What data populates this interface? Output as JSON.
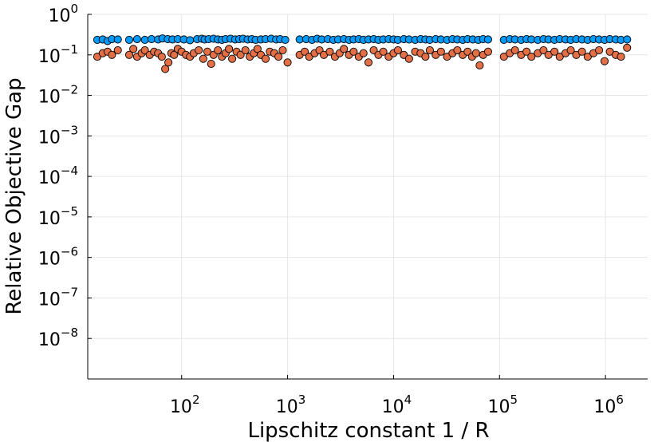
{
  "chart_data": {
    "type": "scatter",
    "title": "",
    "xlabel": "Lipschitz constant 1 / R",
    "ylabel": "Relative Objective Gap",
    "x_scale": "log",
    "y_scale": "log",
    "xlim": [
      13,
      2500000
    ],
    "ylim": [
      1e-09,
      1.0
    ],
    "x_ticks": [
      {
        "value": 100,
        "base": "10",
        "exp": "2"
      },
      {
        "value": 1000,
        "base": "10",
        "exp": "3"
      },
      {
        "value": 10000,
        "base": "10",
        "exp": "4"
      },
      {
        "value": 100000,
        "base": "10",
        "exp": "5"
      },
      {
        "value": 1000000,
        "base": "10",
        "exp": "6"
      }
    ],
    "y_ticks": [
      {
        "value": 1.0,
        "base": "10",
        "exp": "0"
      },
      {
        "value": 0.1,
        "base": "10",
        "exp": "−1"
      },
      {
        "value": 0.01,
        "base": "10",
        "exp": "−2"
      },
      {
        "value": 0.001,
        "base": "10",
        "exp": "−3"
      },
      {
        "value": 0.0001,
        "base": "10",
        "exp": "−4"
      },
      {
        "value": 1e-05,
        "base": "10",
        "exp": "−5"
      },
      {
        "value": 1e-06,
        "base": "10",
        "exp": "−6"
      },
      {
        "value": 1e-07,
        "base": "10",
        "exp": "−7"
      },
      {
        "value": 1e-08,
        "base": "10",
        "exp": "−8"
      }
    ],
    "grid": true,
    "legend": "none",
    "series": [
      {
        "color": "#009AFA",
        "points": [
          [
            16,
            0.235
          ],
          [
            18,
            0.24
          ],
          [
            20,
            0.22
          ],
          [
            22,
            0.245
          ],
          [
            25,
            0.24
          ],
          [
            32,
            0.235
          ],
          [
            38,
            0.245
          ],
          [
            45,
            0.235
          ],
          [
            52,
            0.245
          ],
          [
            60,
            0.24
          ],
          [
            66,
            0.255
          ],
          [
            74,
            0.245
          ],
          [
            82,
            0.24
          ],
          [
            92,
            0.245
          ],
          [
            105,
            0.24
          ],
          [
            120,
            0.23
          ],
          [
            140,
            0.245
          ],
          [
            155,
            0.25
          ],
          [
            165,
            0.24
          ],
          [
            180,
            0.245
          ],
          [
            200,
            0.25
          ],
          [
            220,
            0.24
          ],
          [
            240,
            0.235
          ],
          [
            260,
            0.245
          ],
          [
            290,
            0.25
          ],
          [
            320,
            0.24
          ],
          [
            350,
            0.245
          ],
          [
            380,
            0.25
          ],
          [
            420,
            0.24
          ],
          [
            460,
            0.245
          ],
          [
            500,
            0.235
          ],
          [
            560,
            0.24
          ],
          [
            620,
            0.245
          ],
          [
            700,
            0.25
          ],
          [
            780,
            0.24
          ],
          [
            850,
            0.245
          ],
          [
            950,
            0.235
          ],
          [
            1300,
            0.24
          ],
          [
            1500,
            0.245
          ],
          [
            1700,
            0.235
          ],
          [
            1900,
            0.25
          ],
          [
            2100,
            0.24
          ],
          [
            2400,
            0.245
          ],
          [
            2700,
            0.235
          ],
          [
            3000,
            0.24
          ],
          [
            3400,
            0.245
          ],
          [
            3800,
            0.235
          ],
          [
            4200,
            0.24
          ],
          [
            4700,
            0.245
          ],
          [
            5200,
            0.235
          ],
          [
            5800,
            0.24
          ],
          [
            6500,
            0.245
          ],
          [
            7200,
            0.235
          ],
          [
            8000,
            0.24
          ],
          [
            9000,
            0.245
          ],
          [
            10000,
            0.24
          ],
          [
            11000,
            0.235
          ],
          [
            12500,
            0.245
          ],
          [
            14000,
            0.24
          ],
          [
            16000,
            0.235
          ],
          [
            18000,
            0.245
          ],
          [
            20000,
            0.24
          ],
          [
            22000,
            0.235
          ],
          [
            25000,
            0.245
          ],
          [
            28000,
            0.24
          ],
          [
            32000,
            0.235
          ],
          [
            36000,
            0.245
          ],
          [
            40000,
            0.24
          ],
          [
            45000,
            0.235
          ],
          [
            50000,
            0.245
          ],
          [
            56000,
            0.24
          ],
          [
            63000,
            0.235
          ],
          [
            70000,
            0.245
          ],
          [
            78000,
            0.24
          ],
          [
            110000,
            0.235
          ],
          [
            125000,
            0.245
          ],
          [
            140000,
            0.24
          ],
          [
            160000,
            0.235
          ],
          [
            180000,
            0.245
          ],
          [
            200000,
            0.24
          ],
          [
            230000,
            0.235
          ],
          [
            260000,
            0.245
          ],
          [
            290000,
            0.24
          ],
          [
            330000,
            0.235
          ],
          [
            370000,
            0.245
          ],
          [
            420000,
            0.24
          ],
          [
            470000,
            0.235
          ],
          [
            530000,
            0.245
          ],
          [
            600000,
            0.24
          ],
          [
            680000,
            0.235
          ],
          [
            770000,
            0.245
          ],
          [
            870000,
            0.24
          ],
          [
            980000,
            0.235
          ],
          [
            1100000,
            0.245
          ],
          [
            1250000,
            0.24
          ],
          [
            1400000,
            0.235
          ],
          [
            1600000,
            0.24
          ]
        ]
      },
      {
        "color": "#E26F46",
        "points": [
          [
            16,
            0.09
          ],
          [
            18,
            0.11
          ],
          [
            20,
            0.12
          ],
          [
            22,
            0.1
          ],
          [
            25,
            0.13
          ],
          [
            32,
            0.1
          ],
          [
            35,
            0.14
          ],
          [
            38,
            0.09
          ],
          [
            42,
            0.11
          ],
          [
            45,
            0.13
          ],
          [
            50,
            0.1
          ],
          [
            55,
            0.12
          ],
          [
            60,
            0.11
          ],
          [
            65,
            0.09
          ],
          [
            70,
            0.045
          ],
          [
            75,
            0.065
          ],
          [
            80,
            0.11
          ],
          [
            85,
            0.1
          ],
          [
            92,
            0.14
          ],
          [
            100,
            0.12
          ],
          [
            110,
            0.1
          ],
          [
            120,
            0.09
          ],
          [
            130,
            0.11
          ],
          [
            145,
            0.13
          ],
          [
            160,
            0.08
          ],
          [
            175,
            0.12
          ],
          [
            190,
            0.06
          ],
          [
            200,
            0.1
          ],
          [
            220,
            0.13
          ],
          [
            240,
            0.09
          ],
          [
            260,
            0.11
          ],
          [
            280,
            0.14
          ],
          [
            300,
            0.08
          ],
          [
            330,
            0.12
          ],
          [
            360,
            0.1
          ],
          [
            400,
            0.13
          ],
          [
            440,
            0.09
          ],
          [
            480,
            0.11
          ],
          [
            520,
            0.14
          ],
          [
            560,
            0.1
          ],
          [
            620,
            0.08
          ],
          [
            680,
            0.12
          ],
          [
            750,
            0.11
          ],
          [
            820,
            0.09
          ],
          [
            900,
            0.13
          ],
          [
            1000,
            0.065
          ],
          [
            1300,
            0.1
          ],
          [
            1450,
            0.12
          ],
          [
            1600,
            0.09
          ],
          [
            1800,
            0.11
          ],
          [
            2000,
            0.13
          ],
          [
            2200,
            0.1
          ],
          [
            2500,
            0.12
          ],
          [
            2800,
            0.09
          ],
          [
            3100,
            0.11
          ],
          [
            3400,
            0.14
          ],
          [
            3800,
            0.1
          ],
          [
            4200,
            0.12
          ],
          [
            4700,
            0.09
          ],
          [
            5200,
            0.11
          ],
          [
            5800,
            0.065
          ],
          [
            6500,
            0.13
          ],
          [
            7200,
            0.1
          ],
          [
            8000,
            0.12
          ],
          [
            9000,
            0.09
          ],
          [
            10000,
            0.11
          ],
          [
            11000,
            0.13
          ],
          [
            12500,
            0.1
          ],
          [
            14000,
            0.08
          ],
          [
            16000,
            0.12
          ],
          [
            18000,
            0.11
          ],
          [
            20000,
            0.09
          ],
          [
            22000,
            0.13
          ],
          [
            25000,
            0.1
          ],
          [
            28000,
            0.12
          ],
          [
            32000,
            0.09
          ],
          [
            36000,
            0.11
          ],
          [
            40000,
            0.13
          ],
          [
            45000,
            0.1
          ],
          [
            50000,
            0.12
          ],
          [
            55000,
            0.09
          ],
          [
            60000,
            0.11
          ],
          [
            65000,
            0.055
          ],
          [
            70000,
            0.1
          ],
          [
            78000,
            0.12
          ],
          [
            110000,
            0.09
          ],
          [
            125000,
            0.11
          ],
          [
            140000,
            0.13
          ],
          [
            160000,
            0.1
          ],
          [
            180000,
            0.12
          ],
          [
            200000,
            0.09
          ],
          [
            230000,
            0.11
          ],
          [
            260000,
            0.13
          ],
          [
            290000,
            0.1
          ],
          [
            330000,
            0.12
          ],
          [
            370000,
            0.09
          ],
          [
            420000,
            0.11
          ],
          [
            470000,
            0.13
          ],
          [
            530000,
            0.1
          ],
          [
            600000,
            0.12
          ],
          [
            680000,
            0.09
          ],
          [
            770000,
            0.11
          ],
          [
            870000,
            0.13
          ],
          [
            980000,
            0.07
          ],
          [
            1100000,
            0.12
          ],
          [
            1250000,
            0.1
          ],
          [
            1400000,
            0.09
          ],
          [
            1600000,
            0.15
          ]
        ]
      }
    ]
  }
}
